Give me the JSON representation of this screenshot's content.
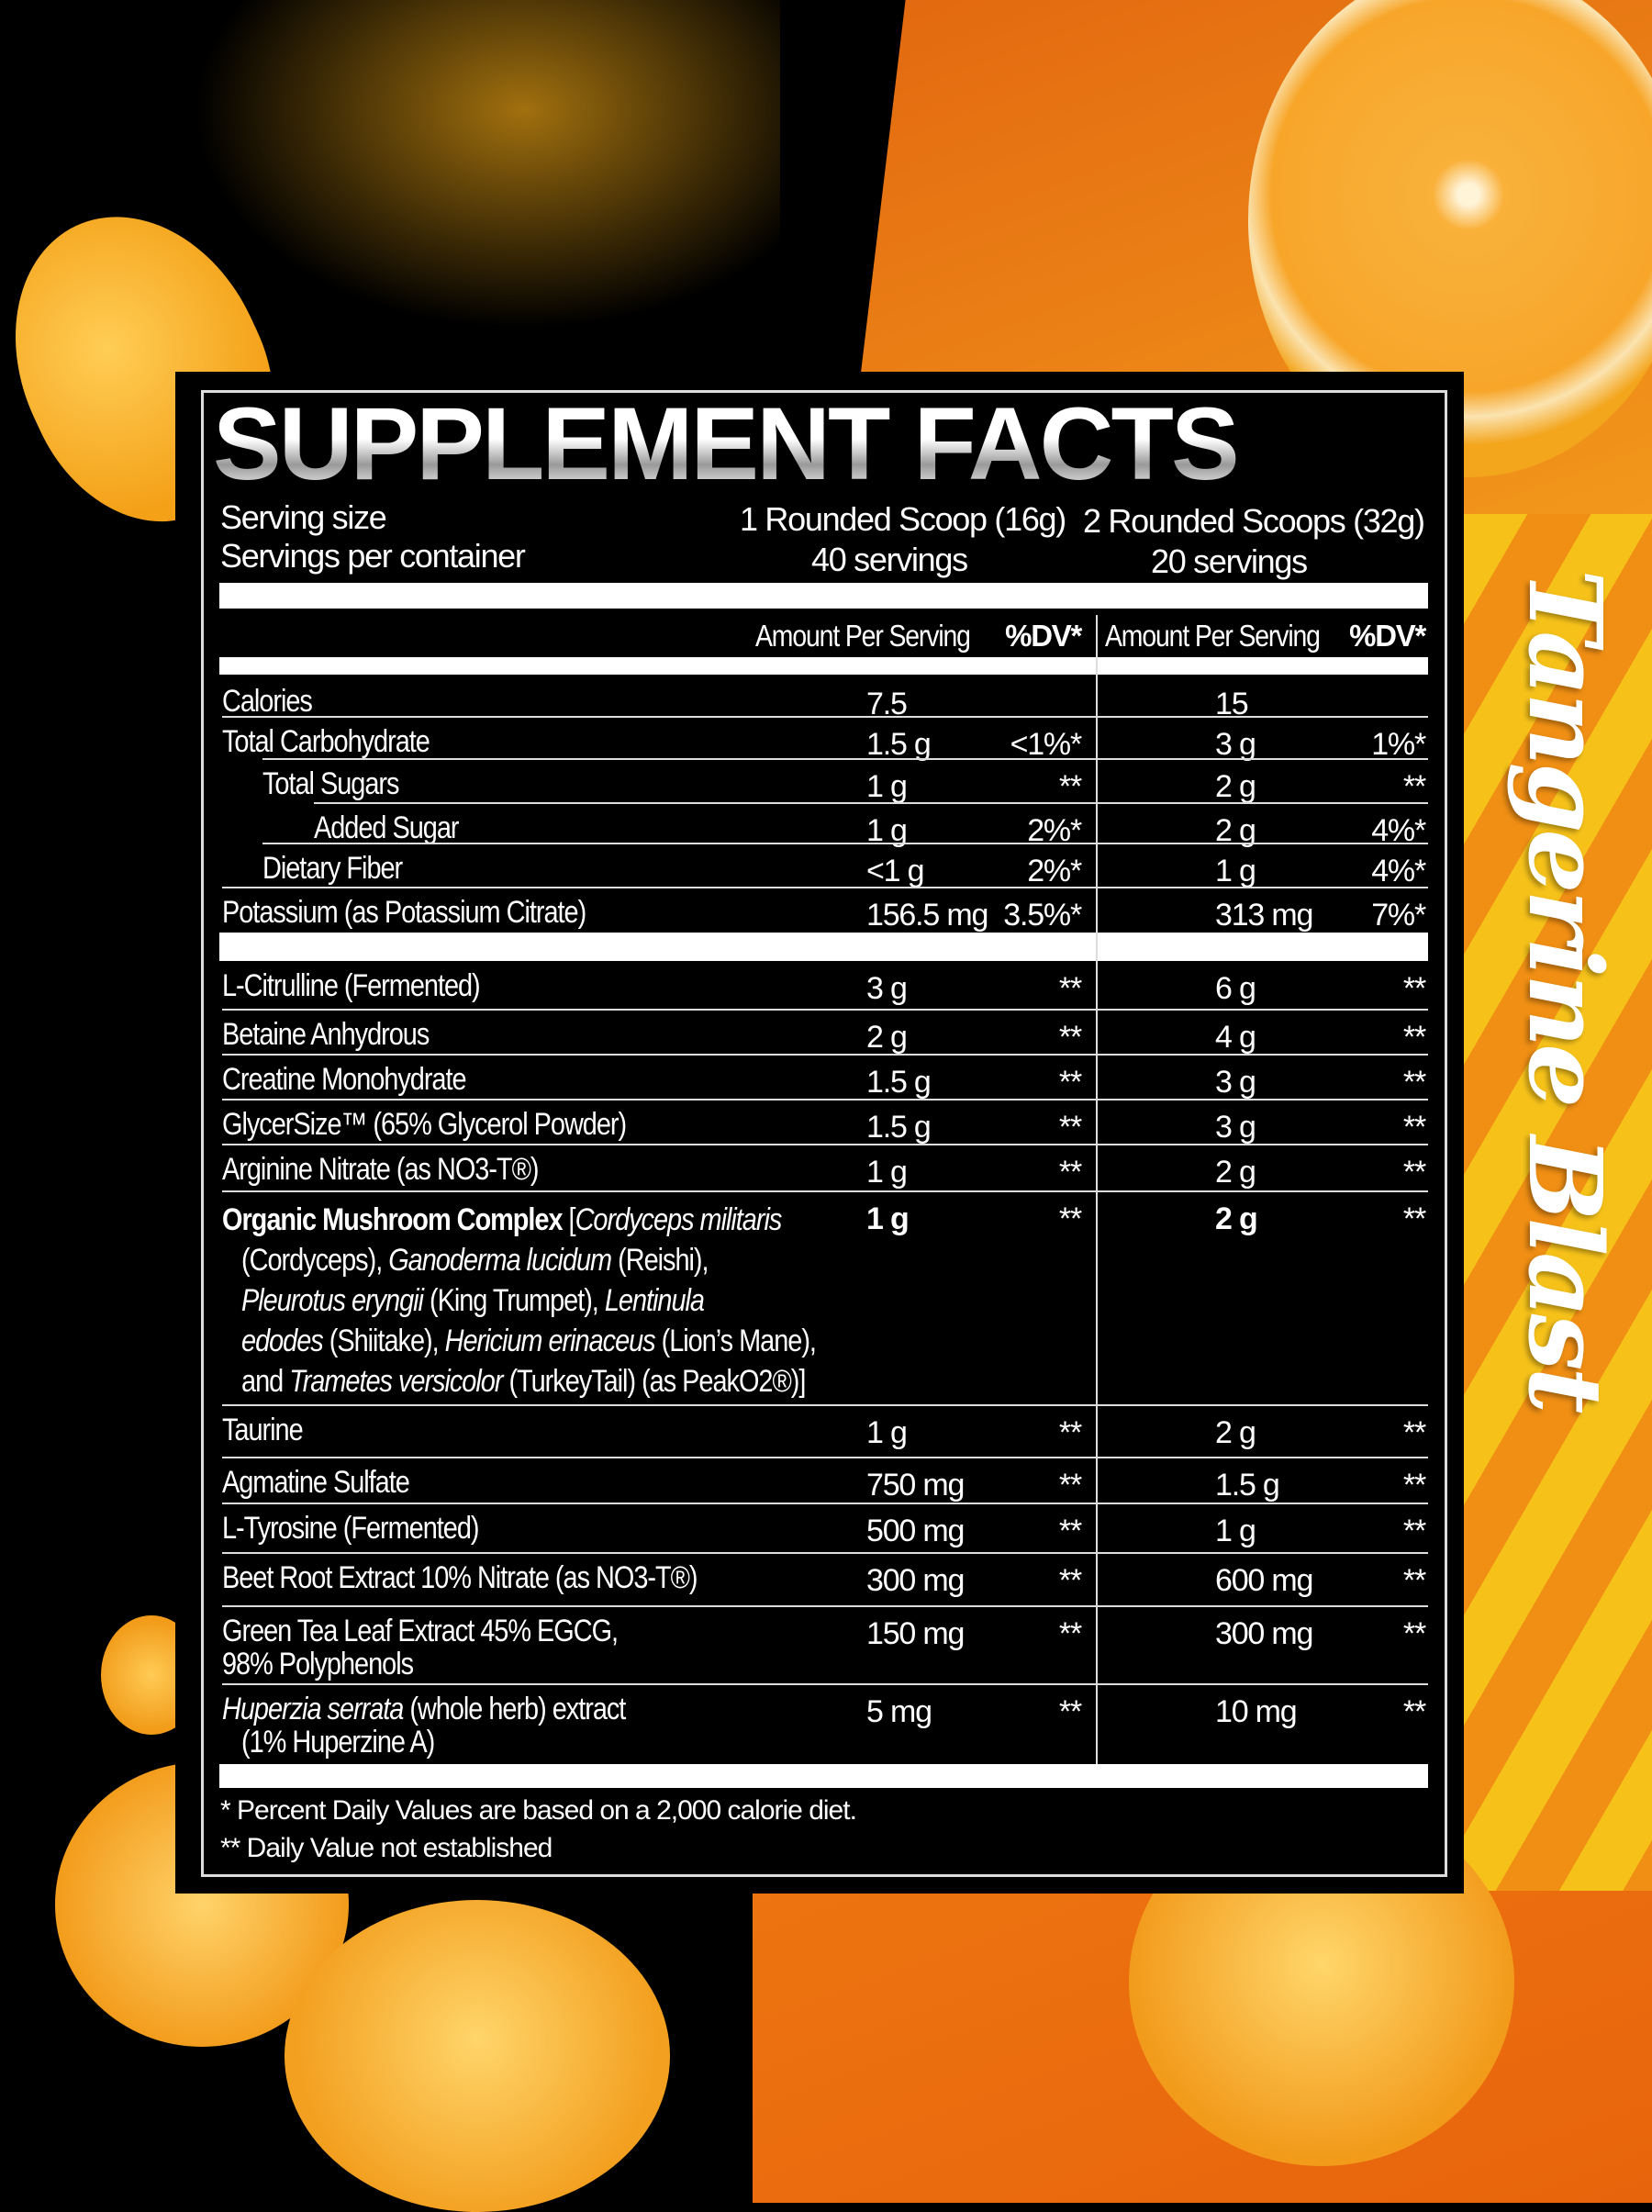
{
  "title": "SUPPLEMENT FACTS",
  "flavor": "Tangerine Blast",
  "colors": {
    "orange": "#f08f14",
    "yellow": "#f6c21a",
    "black": "#000000"
  },
  "serving": {
    "size_label": "Serving size",
    "per_container_label": "Servings per container",
    "col1_size": "1 Rounded Scoop (16g)",
    "col1_servings": "40 servings",
    "col2_size": "2 Rounded Scoops (32g)",
    "col2_servings": "20 servings"
  },
  "header": {
    "amount1": "Amount Per Serving",
    "dv1": "%DV*",
    "amount2": "Amount Per Serving",
    "dv2": "%DV*"
  },
  "rows": [
    {
      "label": "Calories",
      "amt1": "7.5",
      "dv1": "",
      "amt2": "15",
      "dv2": "",
      "indent": 0
    },
    {
      "label": "Total Carbohydrate",
      "amt1": "1.5 g",
      "dv1": "<1%*",
      "amt2": "3 g",
      "dv2": "1%*",
      "indent": 0
    },
    {
      "label": "Total Sugars",
      "amt1": "1 g",
      "dv1": "**",
      "amt2": "2 g",
      "dv2": "**",
      "indent": 1
    },
    {
      "label": "Added Sugar",
      "amt1": "1 g",
      "dv1": "2%*",
      "amt2": "2 g",
      "dv2": "4%*",
      "indent": 2
    },
    {
      "label": "Dietary Fiber",
      "amt1": "<1 g",
      "dv1": "2%*",
      "amt2": "1 g",
      "dv2": "4%*",
      "indent": 1
    },
    {
      "label": "Potassium (as Potassium Citrate)",
      "amt1": "156.5 mg",
      "dv1": "3.5%*",
      "amt2": "313 mg",
      "dv2": "7%*",
      "indent": 0
    },
    {
      "label": "L-Citrulline (Fermented)",
      "amt1": "3 g",
      "dv1": "**",
      "amt2": "6 g",
      "dv2": "**",
      "indent": 0
    },
    {
      "label": "Betaine Anhydrous",
      "amt1": "2 g",
      "dv1": "**",
      "amt2": "4 g",
      "dv2": "**",
      "indent": 0
    },
    {
      "label": "Creatine Monohydrate",
      "amt1": "1.5 g",
      "dv1": "**",
      "amt2": "3 g",
      "dv2": "**",
      "indent": 0
    },
    {
      "label": "GlycerSize™ (65% Glycerol Powder)",
      "amt1": "1.5 g",
      "dv1": "**",
      "amt2": "3 g",
      "dv2": "**",
      "indent": 0
    },
    {
      "label": "Arginine Nitrate (as NO3-T®)",
      "amt1": "1 g",
      "dv1": "**",
      "amt2": "2 g",
      "dv2": "**",
      "indent": 0
    },
    {
      "label": "",
      "segments": [
        {
          "text": "Organic Mushroom Complex ",
          "style": "bold"
        },
        {
          "text": "[",
          "style": ""
        },
        {
          "text": "Cordyceps militaris",
          "style": "italic"
        },
        {
          "text": "\n(Cordyceps), ",
          "style": ""
        },
        {
          "text": "Ganoderma lucidum",
          "style": "italic"
        },
        {
          "text": " (Reishi),",
          "style": ""
        },
        {
          "text": "\nPleurotus eryngii",
          "style": "italic"
        },
        {
          "text": " (King Trumpet), ",
          "style": ""
        },
        {
          "text": "Lentinula",
          "style": "italic"
        },
        {
          "text": "\nedodes",
          "style": "italic"
        },
        {
          "text": " (Shiitake), ",
          "style": ""
        },
        {
          "text": "Hericium erinaceus",
          "style": "italic"
        },
        {
          "text": " (Lion’s Mane),",
          "style": ""
        },
        {
          "text": "\nand ",
          "style": ""
        },
        {
          "text": "Trametes versicolor",
          "style": "italic"
        },
        {
          "text": " (TurkeyTail) (as PeakO2®)]",
          "style": ""
        }
      ],
      "amt1": "1 g",
      "dv1": "**",
      "amt2": "2 g",
      "dv2": "**",
      "indent": 0,
      "bold_amounts": true
    },
    {
      "label": "Taurine",
      "amt1": "1 g",
      "dv1": "**",
      "amt2": "2 g",
      "dv2": "**",
      "indent": 0
    },
    {
      "label": "Agmatine Sulfate",
      "amt1": "750 mg",
      "dv1": "**",
      "amt2": "1.5 g",
      "dv2": "**",
      "indent": 0
    },
    {
      "label": "L-Tyrosine (Fermented)",
      "amt1": "500 mg",
      "dv1": "**",
      "amt2": "1 g",
      "dv2": "**",
      "indent": 0
    },
    {
      "label": "Beet Root Extract 10% Nitrate (as NO3-T®)",
      "amt1": "300 mg",
      "dv1": "**",
      "amt2": "600 mg",
      "dv2": "**",
      "indent": 0
    },
    {
      "label": "Green Tea Leaf Extract 45% EGCG,\n98% Polyphenols",
      "amt1": "150 mg",
      "dv1": "**",
      "amt2": "300 mg",
      "dv2": "**",
      "indent": 0
    },
    {
      "label": "",
      "segments": [
        {
          "text": "Huperzia serrata",
          "style": "italic"
        },
        {
          "text": " (whole herb) extract\n(1% Huperzine A)",
          "style": ""
        }
      ],
      "amt1": "5 mg",
      "dv1": "**",
      "amt2": "10 mg",
      "dv2": "**",
      "indent": 0
    }
  ],
  "footnotes": [
    "* Percent Daily Values are based on a 2,000 calorie diet.",
    "** Daily Value not established"
  ]
}
